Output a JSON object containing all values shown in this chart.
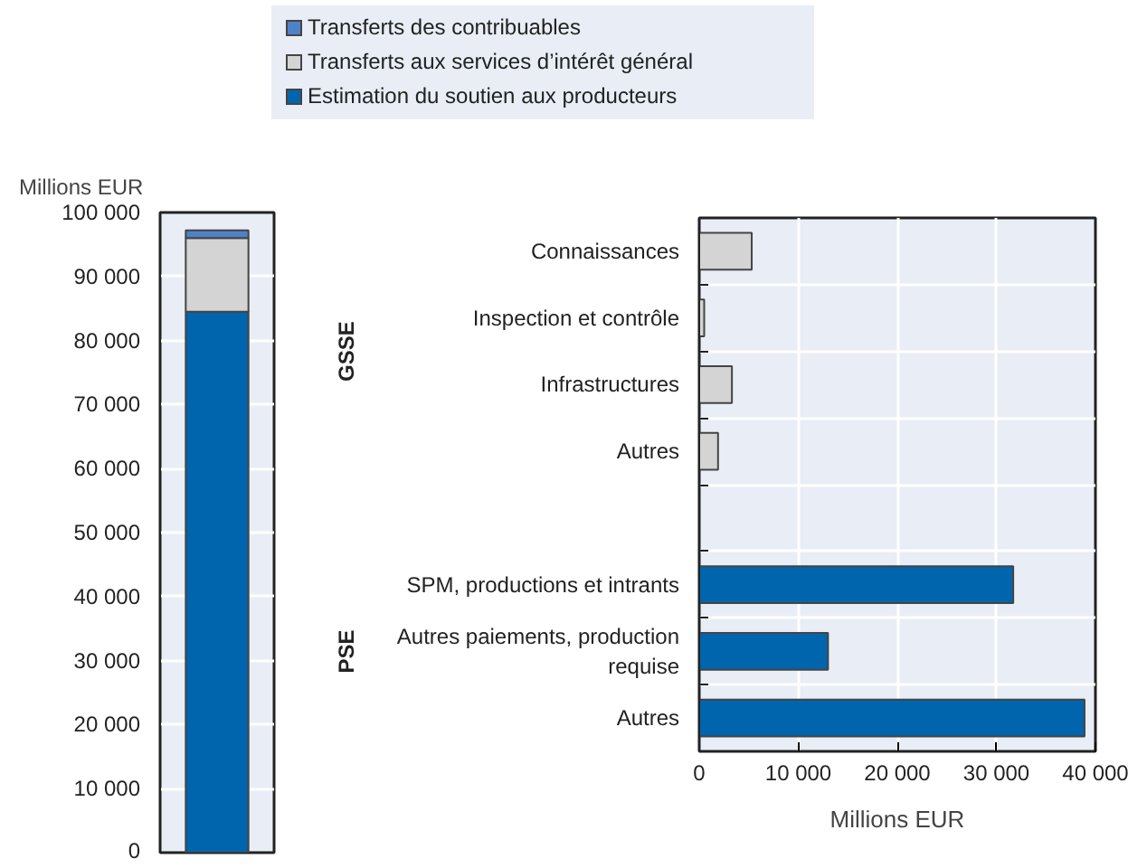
{
  "chart_data": [
    {
      "type": "bar",
      "stacked": true,
      "categories": [
        null
      ],
      "ylabel": "Millions EUR",
      "ylim": [
        0,
        100000
      ],
      "yticks": [
        0,
        {
          "value": 10000,
          "label": "10 000"
        },
        {
          "value": 20000,
          "label": "20 000"
        },
        {
          "value": 30000,
          "label": "30 000"
        },
        {
          "value": 40000,
          "label": "40 000"
        },
        {
          "value": 50000,
          "label": "50 000"
        },
        {
          "value": 60000,
          "label": "60 000"
        },
        {
          "value": 70000,
          "label": "70 000"
        },
        {
          "value": 80000,
          "label": "80 000"
        },
        {
          "value": 90000,
          "label": "90 000"
        },
        {
          "value": 100000,
          "label": "100 000"
        }
      ],
      "grid": "y",
      "legend": "top",
      "series": [
        {
          "name": "Estimation du soutien aux producteurs",
          "color": "#0065ad",
          "values": [
            84500
          ]
        },
        {
          "name": "Transferts aux services d’intérêt général",
          "color": "#d4d4d4",
          "values": [
            11500
          ]
        },
        {
          "name": "Transferts des contribuables",
          "color": "#4f81c7",
          "values": [
            1200
          ]
        }
      ]
    },
    {
      "type": "bar",
      "orientation": "horizontal",
      "categories": [
        "Connaissances",
        "Inspection et contrôle",
        "Infrastructures",
        "Autres",
        null,
        "SPM, productions et intrants",
        "Autres paiements, production requise",
        "Autres"
      ],
      "values": [
        5300,
        500,
        3300,
        1900,
        null,
        31700,
        13000,
        38900
      ],
      "colors": [
        "#d4d4d4",
        "#d4d4d4",
        "#d4d4d4",
        "#d4d4d4",
        "#d4d4d4",
        "#0065ad",
        "#0065ad",
        "#0065ad"
      ],
      "xlim": [
        0,
        40000
      ],
      "xticks": [
        0,
        {
          "value": 10000,
          "label": "10 000"
        },
        {
          "value": 20000,
          "label": "20 000"
        },
        {
          "value": 30000,
          "label": "30 000"
        },
        {
          "value": 40000,
          "label": "40 000"
        }
      ],
      "xlabel": "Millions EUR",
      "grid": true,
      "annotations": [
        "GSSE",
        "PSE"
      ]
    }
  ]
}
